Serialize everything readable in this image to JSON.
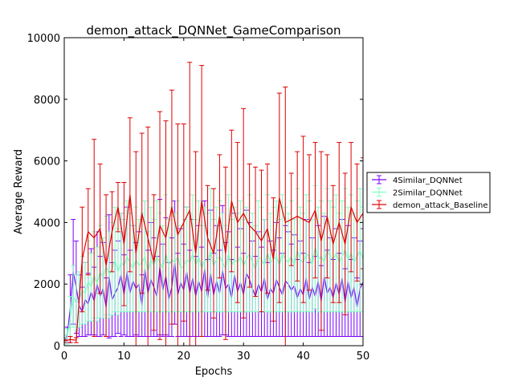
{
  "chart_data": {
    "type": "line",
    "title": "demon_attack_DQNNet_GameComparison",
    "xlabel": "Epochs",
    "ylabel": "Average Reward",
    "xlim": [
      0,
      50
    ],
    "ylim": [
      0,
      10000
    ],
    "xticks": [
      "0",
      "10",
      "20",
      "30",
      "40",
      "50"
    ],
    "yticks": [
      "0",
      "2000",
      "4000",
      "6000",
      "8000",
      "10000"
    ],
    "grid": false,
    "legend_position": "outside-right",
    "series": [
      {
        "name": "4Similar_DQNNet",
        "color": "#7a00ff",
        "x": [
          0,
          0.5,
          1,
          1.5,
          2,
          2.5,
          3,
          3.5,
          4,
          4.5,
          5,
          5.5,
          6,
          6.5,
          7,
          7.5,
          8,
          8.5,
          9,
          9.5,
          10,
          10.5,
          11,
          11.5,
          12,
          12.5,
          13,
          13.5,
          14,
          14.5,
          15,
          15.5,
          16,
          16.5,
          17,
          17.5,
          18,
          18.5,
          19,
          19.5,
          20,
          20.5,
          21,
          21.5,
          22,
          22.5,
          23,
          23.5,
          24,
          24.5,
          25,
          25.5,
          26,
          26.5,
          27,
          27.5,
          28,
          28.5,
          29,
          29.5,
          30,
          30.5,
          31,
          31.5,
          32,
          32.5,
          33,
          33.5,
          34,
          34.5,
          35,
          35.5,
          36,
          36.5,
          37,
          37.5,
          38,
          38.5,
          39,
          39.5,
          40,
          40.5,
          41,
          41.5,
          42,
          42.5,
          43,
          43.5,
          44,
          44.5,
          45,
          45.5,
          46,
          46.5,
          47,
          47.5,
          48,
          48.5,
          49,
          49.5,
          50
        ],
        "values": [
          150,
          350,
          1200,
          2400,
          1900,
          1300,
          1100,
          1500,
          1350,
          1750,
          1450,
          2000,
          1600,
          1850,
          1250,
          2250,
          1500,
          1700,
          1900,
          2300,
          1650,
          2400,
          1700,
          2100,
          1850,
          2000,
          1300,
          2500,
          1700,
          2150,
          1900,
          1600,
          2550,
          1800,
          2250,
          1500,
          1900,
          2700,
          1650,
          2050,
          1800,
          2400,
          1700,
          2200,
          1600,
          2100,
          1750,
          2500,
          1550,
          2350,
          1650,
          2100,
          1700,
          2450,
          1850,
          2000,
          1550,
          2300,
          1750,
          2050,
          1650,
          2350,
          2150,
          1850,
          1600,
          2000,
          1750,
          2200,
          1500,
          1850,
          1700,
          2150,
          1900,
          1650,
          2100,
          2000,
          1800,
          1950,
          1550,
          1850,
          1650,
          2200,
          1500,
          1900,
          1600,
          2100,
          1450,
          2250,
          1700,
          1900,
          1550,
          2050,
          1650,
          2200,
          1400,
          2100,
          1550,
          1900,
          1250,
          1850,
          2050
        ],
        "errors": [
          100,
          250,
          1100,
          1700,
          1500,
          1000,
          800,
          1200,
          1000,
          1400,
          1100,
          1700,
          1300,
          1500,
          950,
          2000,
          1200,
          1400,
          1500,
          2000,
          1300,
          2100,
          1400,
          1800,
          1500,
          1700,
          1000,
          2200,
          1400,
          1850,
          1600,
          1300,
          2200,
          1500,
          1900,
          1200,
          1600,
          2000,
          1350,
          1750,
          1500,
          2100,
          1400,
          1900,
          1300,
          1800,
          1450,
          2200,
          1250,
          2050,
          1350,
          1800,
          1400,
          2100,
          1500,
          1700,
          1250,
          2000,
          1450,
          1750,
          1350,
          2050,
          1850,
          1550,
          1300,
          1700,
          1450,
          1900,
          1200,
          1550,
          1400,
          1850,
          1600,
          1350,
          1800,
          1700,
          1500,
          1650,
          1250,
          1550,
          1350,
          1900,
          1200,
          1600,
          1300,
          1800,
          1150,
          1950,
          1400,
          1600,
          1250,
          1750,
          1350,
          1900,
          1100,
          1800,
          1250,
          1600,
          950,
          1550,
          1750
        ]
      },
      {
        "name": "2Similar_DQNNet",
        "color": "#80ffc0",
        "x": [
          0,
          0.5,
          1,
          1.5,
          2,
          2.5,
          3,
          3.5,
          4,
          4.5,
          5,
          5.5,
          6,
          6.5,
          7,
          7.5,
          8,
          8.5,
          9,
          9.5,
          10,
          10.5,
          11,
          11.5,
          12,
          12.5,
          13,
          13.5,
          14,
          14.5,
          15,
          15.5,
          16,
          16.5,
          17,
          17.5,
          18,
          18.5,
          19,
          19.5,
          20,
          20.5,
          21,
          21.5,
          22,
          22.5,
          23,
          23.5,
          24,
          24.5,
          25,
          25.5,
          26,
          26.5,
          27,
          27.5,
          28,
          28.5,
          29,
          29.5,
          30,
          30.5,
          31,
          31.5,
          32,
          32.5,
          33,
          33.5,
          34,
          34.5,
          35,
          35.5,
          36,
          36.5,
          37,
          37.5,
          38,
          38.5,
          39,
          39.5,
          40,
          40.5,
          41,
          41.5,
          42,
          42.5,
          43,
          43.5,
          44,
          44.5,
          45,
          45.5,
          46,
          46.5,
          47,
          47.5,
          48,
          48.5,
          49,
          49.5,
          50
        ],
        "values": [
          200,
          300,
          900,
          1600,
          1400,
          1500,
          1800,
          1700,
          2100,
          1900,
          2300,
          2000,
          2400,
          2200,
          2600,
          2300,
          2500,
          2800,
          2400,
          2700,
          2600,
          2900,
          2700,
          2500,
          2800,
          2600,
          2700,
          2900,
          2400,
          2800,
          2600,
          2900,
          2700,
          2500,
          3000,
          2600,
          2800,
          2700,
          2900,
          2500,
          2600,
          2800,
          2700,
          3000,
          2600,
          2900,
          2500,
          2800,
          2700,
          3100,
          2600,
          2800,
          2900,
          2700,
          2500,
          3000,
          2600,
          2800,
          2700,
          2900,
          2600,
          2800,
          3000,
          2700,
          2500,
          2900,
          2800,
          2600,
          3000,
          2700,
          2800,
          2900,
          2600,
          3000,
          2800,
          2700,
          2900,
          2600,
          3100,
          2800,
          2700,
          3000,
          2900,
          2600,
          3200,
          2800,
          2900,
          2700,
          3100,
          2900,
          2800,
          3000,
          2700,
          2900,
          3100,
          2800,
          3000,
          2700,
          2900,
          3100,
          2800
        ],
        "errors": [
          150,
          250,
          700,
          1000,
          900,
          900,
          1100,
          1000,
          1300,
          1100,
          1400,
          1200,
          1500,
          1300,
          1600,
          1400,
          1500,
          1700,
          1400,
          1600,
          1500,
          1800,
          1600,
          1400,
          1700,
          1500,
          1600,
          1800,
          1300,
          1700,
          1500,
          1800,
          1600,
          1400,
          1900,
          1500,
          1700,
          1600,
          1800,
          1400,
          1500,
          1700,
          1600,
          1900,
          1500,
          1800,
          1400,
          1700,
          1600,
          2000,
          1500,
          1700,
          1800,
          1600,
          1400,
          1900,
          1500,
          1700,
          1600,
          1800,
          1500,
          1700,
          1900,
          1600,
          1400,
          1800,
          1700,
          1500,
          1900,
          1600,
          1700,
          1800,
          1500,
          1900,
          1700,
          1600,
          1800,
          1500,
          2000,
          1700,
          1600,
          1900,
          1800,
          1500,
          2000,
          1700,
          1800,
          1600,
          2000,
          1800,
          1700,
          1900,
          1600,
          1800,
          2000,
          1700,
          1900,
          1600,
          1800,
          2000,
          1700
        ]
      },
      {
        "name": "demon_attack_Baseline",
        "color": "#e00000",
        "x": [
          0,
          1,
          2,
          3,
          4,
          5,
          6,
          7,
          8,
          9,
          10,
          11,
          12,
          13,
          14,
          15,
          16,
          17,
          18,
          19,
          20,
          21,
          22,
          23,
          24,
          25,
          26,
          27,
          28,
          29,
          30,
          31,
          32,
          33,
          34,
          35,
          36,
          37,
          38,
          39,
          40,
          41,
          42,
          43,
          44,
          45,
          46,
          47,
          48,
          49,
          50
        ],
        "values": [
          150,
          200,
          180,
          2800,
          3700,
          3500,
          3800,
          2600,
          3700,
          4500,
          3300,
          4900,
          3000,
          4300,
          3500,
          2700,
          3900,
          3500,
          4500,
          3600,
          4000,
          4400,
          3000,
          4700,
          3500,
          3000,
          4200,
          3000,
          4700,
          4000,
          4300,
          3900,
          3700,
          3400,
          3800,
          2800,
          4800,
          4000,
          4100,
          4200,
          4100,
          4000,
          4400,
          3400,
          4200,
          3300,
          4000,
          3300,
          4500,
          4000,
          4300
        ],
        "errors": [
          50,
          100,
          80,
          1700,
          1400,
          3200,
          2100,
          2300,
          1300,
          800,
          2000,
          2500,
          3300,
          2600,
          3600,
          2200,
          3700,
          3800,
          3800,
          3600,
          3200,
          4800,
          3300,
          4400,
          1700,
          2100,
          2000,
          2800,
          2300,
          2600,
          3400,
          2000,
          2100,
          2300,
          2100,
          2000,
          3400,
          4400,
          1500,
          2100,
          2700,
          2200,
          2200,
          2900,
          2000,
          1900,
          2600,
          2300,
          2100,
          1900,
          1800
        ]
      }
    ]
  }
}
